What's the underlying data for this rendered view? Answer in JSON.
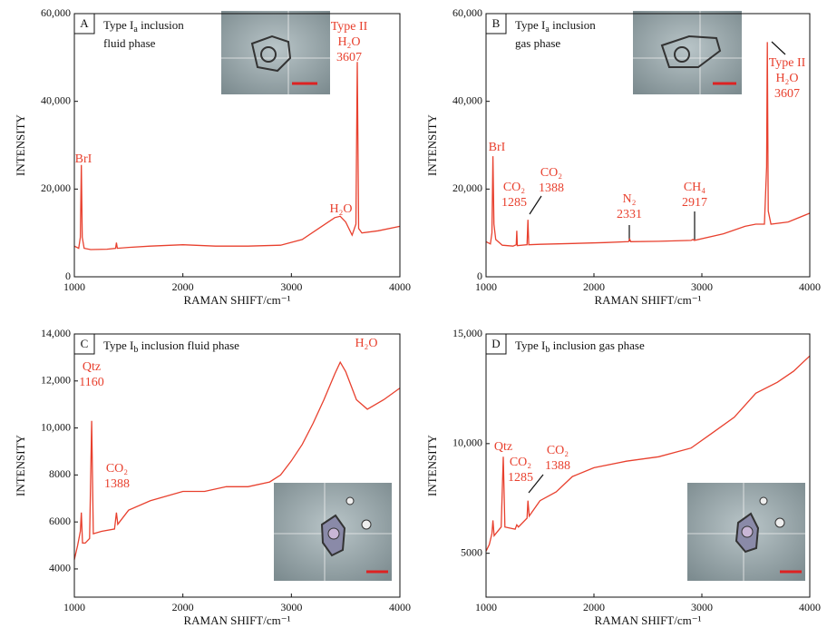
{
  "chart_data": [
    {
      "type": "line",
      "panel": "A",
      "title": [
        "Type I",
        "a",
        " inclusion"
      ],
      "subtitle": "fluid phase",
      "xlabel": "RAMAN SHIFT/cm⁻¹",
      "ylabel": "INTENSITY",
      "color": "#e8402e",
      "xlim": [
        1000,
        4000
      ],
      "xticks": [
        1000,
        2000,
        3000,
        4000
      ],
      "ylim": [
        0,
        60000
      ],
      "yticks": [
        0,
        {
          "value": 20000,
          "label": "20,000"
        },
        {
          "value": 40000,
          "label": "40,000"
        },
        {
          "value": 60000,
          "label": "60,000"
        }
      ],
      "x": [
        1000,
        1040,
        1055,
        1064,
        1073,
        1090,
        1150,
        1300,
        1380,
        1388,
        1396,
        1500,
        1700,
        2000,
        2300,
        2600,
        2900,
        3100,
        3250,
        3400,
        3450,
        3500,
        3560,
        3595,
        3607,
        3620,
        3650,
        3800,
        4000
      ],
      "values": [
        7000,
        6500,
        9000,
        25500,
        9000,
        6500,
        6200,
        6300,
        6500,
        7800,
        6500,
        6700,
        7000,
        7300,
        7000,
        7000,
        7200,
        8500,
        11000,
        13500,
        13800,
        12500,
        9500,
        12000,
        49000,
        11000,
        10000,
        10500,
        11500
      ],
      "annotations": [
        [
          "BrI"
        ],
        [
          "Type II",
          "H₂O",
          "3607"
        ],
        [
          "H₂O"
        ]
      ]
    },
    {
      "type": "line",
      "panel": "B",
      "title": [
        "Type I",
        "a",
        " inclusion"
      ],
      "subtitle": "gas phase",
      "xlabel": "RAMAN SHIFT/cm⁻¹",
      "ylabel": "INTENSITY",
      "color": "#e8402e",
      "xlim": [
        1000,
        4000
      ],
      "xticks": [
        1000,
        2000,
        3000,
        4000
      ],
      "ylim": [
        0,
        60000
      ],
      "yticks": [
        0,
        {
          "value": 20000,
          "label": "20,000"
        },
        {
          "value": 40000,
          "label": "40,000"
        },
        {
          "value": 60000,
          "label": "60,000"
        }
      ],
      "x": [
        1000,
        1040,
        1055,
        1064,
        1073,
        1090,
        1150,
        1250,
        1280,
        1285,
        1290,
        1380,
        1388,
        1396,
        1500,
        1800,
        2100,
        2320,
        2331,
        2340,
        2600,
        2900,
        2917,
        2930,
        3200,
        3400,
        3500,
        3580,
        3600,
        3607,
        3615,
        3640,
        3800,
        4000
      ],
      "values": [
        8000,
        7500,
        10000,
        27500,
        12000,
        8500,
        7200,
        7000,
        7300,
        10500,
        7100,
        7300,
        13000,
        7300,
        7400,
        7600,
        7800,
        8000,
        8600,
        8000,
        8100,
        8300,
        8500,
        8300,
        9800,
        11500,
        12000,
        12000,
        25000,
        53500,
        15000,
        12000,
        12500,
        14500
      ],
      "annotations": [
        [
          "BrI"
        ],
        [
          "CO₂",
          "1285"
        ],
        [
          "CO₂",
          "1388"
        ],
        [
          "N₂",
          "2331"
        ],
        [
          "CH₄",
          "2917"
        ],
        [
          "Type II",
          "H₂O",
          "3607"
        ]
      ]
    },
    {
      "type": "line",
      "panel": "C",
      "title": [
        "Type I",
        "b",
        " inclusion fluid phase"
      ],
      "xlabel": "RAMAN SHIFT/cm⁻¹",
      "ylabel": "INTENSITY",
      "color": "#e8402e",
      "xlim": [
        1000,
        4000
      ],
      "xticks": [
        1000,
        2000,
        3000,
        4000
      ],
      "ylim": [
        2800,
        14000
      ],
      "yticks": [
        4000,
        6000,
        8000,
        {
          "value": 10000,
          "label": "10,000"
        },
        {
          "value": 12000,
          "label": "12,000"
        },
        {
          "value": 14000,
          "label": "14,000"
        }
      ],
      "x": [
        1000,
        1030,
        1055,
        1064,
        1075,
        1100,
        1140,
        1160,
        1175,
        1250,
        1370,
        1388,
        1400,
        1500,
        1700,
        2000,
        2200,
        2400,
        2600,
        2800,
        2900,
        3000,
        3100,
        3200,
        3300,
        3400,
        3450,
        3500,
        3600,
        3700,
        3850,
        4000
      ],
      "values": [
        4400,
        5000,
        5600,
        6400,
        5100,
        5100,
        5300,
        10300,
        5500,
        5600,
        5700,
        6400,
        5900,
        6500,
        6900,
        7300,
        7300,
        7500,
        7500,
        7700,
        8000,
        8600,
        9300,
        10200,
        11200,
        12300,
        12800,
        12400,
        11200,
        10800,
        11200,
        11700
      ],
      "annotations": [
        [
          "Qtz",
          "1160"
        ],
        [
          "CO₂",
          "1388"
        ],
        [
          "H₂O"
        ]
      ]
    },
    {
      "type": "line",
      "panel": "D",
      "title": [
        "Type I",
        "b",
        " inclusion gas phase"
      ],
      "xlabel": "RAMAN SHIFT/cm⁻¹",
      "ylabel": "INTENSITY",
      "color": "#e8402e",
      "xlim": [
        1000,
        4000
      ],
      "xticks": [
        1000,
        2000,
        3000,
        4000
      ],
      "ylim": [
        3000,
        15000
      ],
      "yticks": [
        5000,
        {
          "value": 10000,
          "label": "10,000"
        },
        {
          "value": 15000,
          "label": "15,000"
        }
      ],
      "x": [
        1000,
        1030,
        1055,
        1064,
        1075,
        1140,
        1160,
        1175,
        1270,
        1285,
        1300,
        1380,
        1388,
        1400,
        1500,
        1650,
        1800,
        2000,
        2300,
        2600,
        2900,
        3100,
        3300,
        3500,
        3700,
        3850,
        4000
      ],
      "values": [
        5100,
        5400,
        5900,
        6500,
        5800,
        6200,
        9400,
        6200,
        6100,
        6300,
        6200,
        6600,
        7400,
        6700,
        7400,
        7800,
        8500,
        8900,
        9200,
        9400,
        9800,
        10500,
        11200,
        12300,
        12800,
        13300,
        14000
      ],
      "annotations": [
        [
          "Qtz"
        ],
        [
          "CO₂",
          "1285"
        ],
        [
          "CO₂",
          "1388"
        ]
      ]
    }
  ]
}
